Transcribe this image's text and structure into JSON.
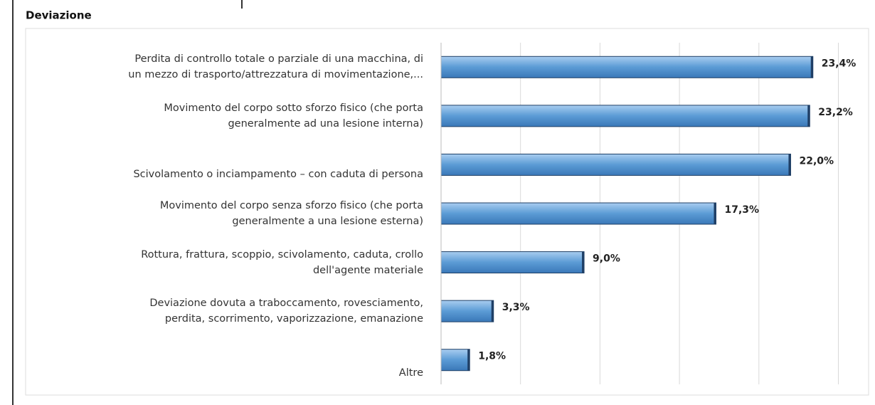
{
  "chart_data": {
    "type": "bar",
    "orientation": "horizontal",
    "title": "Deviazione",
    "categories": [
      "Perdita di controllo totale o parziale di una macchina, di\nun mezzo di trasporto/attrezzatura di movimentazione,...",
      "Movimento del corpo sotto sforzo fisico (che porta\ngeneralmente ad una lesione interna)",
      "Scivolamento o inciampamento – con caduta di persona",
      "Movimento del corpo senza sforzo fisico (che porta\ngeneralmente a una lesione esterna)",
      "Rottura, frattura, scoppio, scivolamento, caduta, crollo\ndell'agente materiale",
      "Deviazione dovuta a traboccamento, rovesciamento,\nperdita, scorrimento, vaporizzazione, emanazione",
      "Altre"
    ],
    "values": [
      23.4,
      23.2,
      22.0,
      17.3,
      9.0,
      3.3,
      1.8
    ],
    "value_labels": [
      "23,4%",
      "23,2%",
      "22,0%",
      "17,3%",
      "9,0%",
      "3,3%",
      "1,8%"
    ],
    "color": "#5b9bd5",
    "xlim": [
      0,
      26.5
    ],
    "xticks": [
      0,
      5,
      10,
      15,
      20,
      25
    ],
    "grid": true
  }
}
